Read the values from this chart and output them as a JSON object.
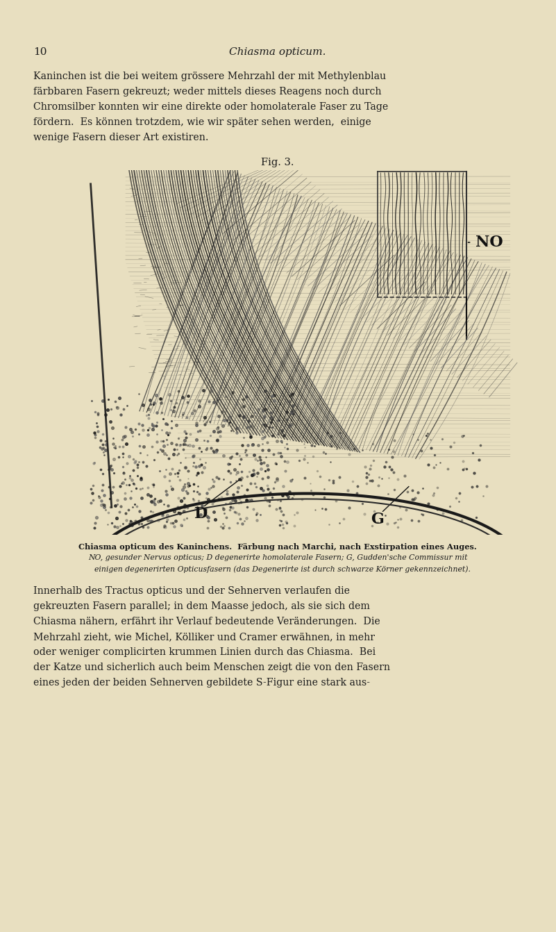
{
  "background_color": "#e8dfc0",
  "page_number": "10",
  "header": "Chiasma opticum.",
  "para1_lines": [
    "Kaninchen ist die bei weitem grössere Mehrzahl der mit Methylenblau",
    "färbbaren Fasern gekreuzt; weder mittels dieses Reagens noch durch",
    "Chromsilber konnten wir eine direkte oder homolaterale Faser zu Tage",
    "fördern.  Es können trotzdem, wie wir später sehen werden,  einige",
    "wenige Fasern dieser Art existiren."
  ],
  "fig_label": "Fig. 3.",
  "caption_line1": "Chiasma opticum des Kaninchens.  Färbung nach Marchi, nach Exstirpation eines Auges.",
  "caption_line2": "NO, gesunder Nervus opticus; D degenerirte homolaterale Fasern; G, Gudden'sche Commissur mit",
  "caption_line3": "    einigen degenerirten Opticusfasern (das Degenerirte ist durch schwarze Körner gekennzeichnet).",
  "para2_lines": [
    "Innerhalb des Tractus opticus und der Sehnerven verlaufen die",
    "gekreuzten Fasern parallel; in dem Maasse jedoch, als sie sich dem",
    "Chiasma nähern, erfährt ihr Verlauf bedeutende Veränderungen.  Die",
    "Mehrzahl zieht, wie Michel, Kölliker und Cramer erwähnen, in mehr",
    "oder weniger complicirten krummen Linien durch das Chiasma.  Bei",
    "der Katze und sicherlich auch beim Menschen zeigt die von den Fasern",
    "eines jeden der beiden Sehnerven gebildete S-Figur eine stark aus-"
  ],
  "text_color": "#1a1a1a",
  "bg_rgb": [
    232,
    223,
    192
  ]
}
